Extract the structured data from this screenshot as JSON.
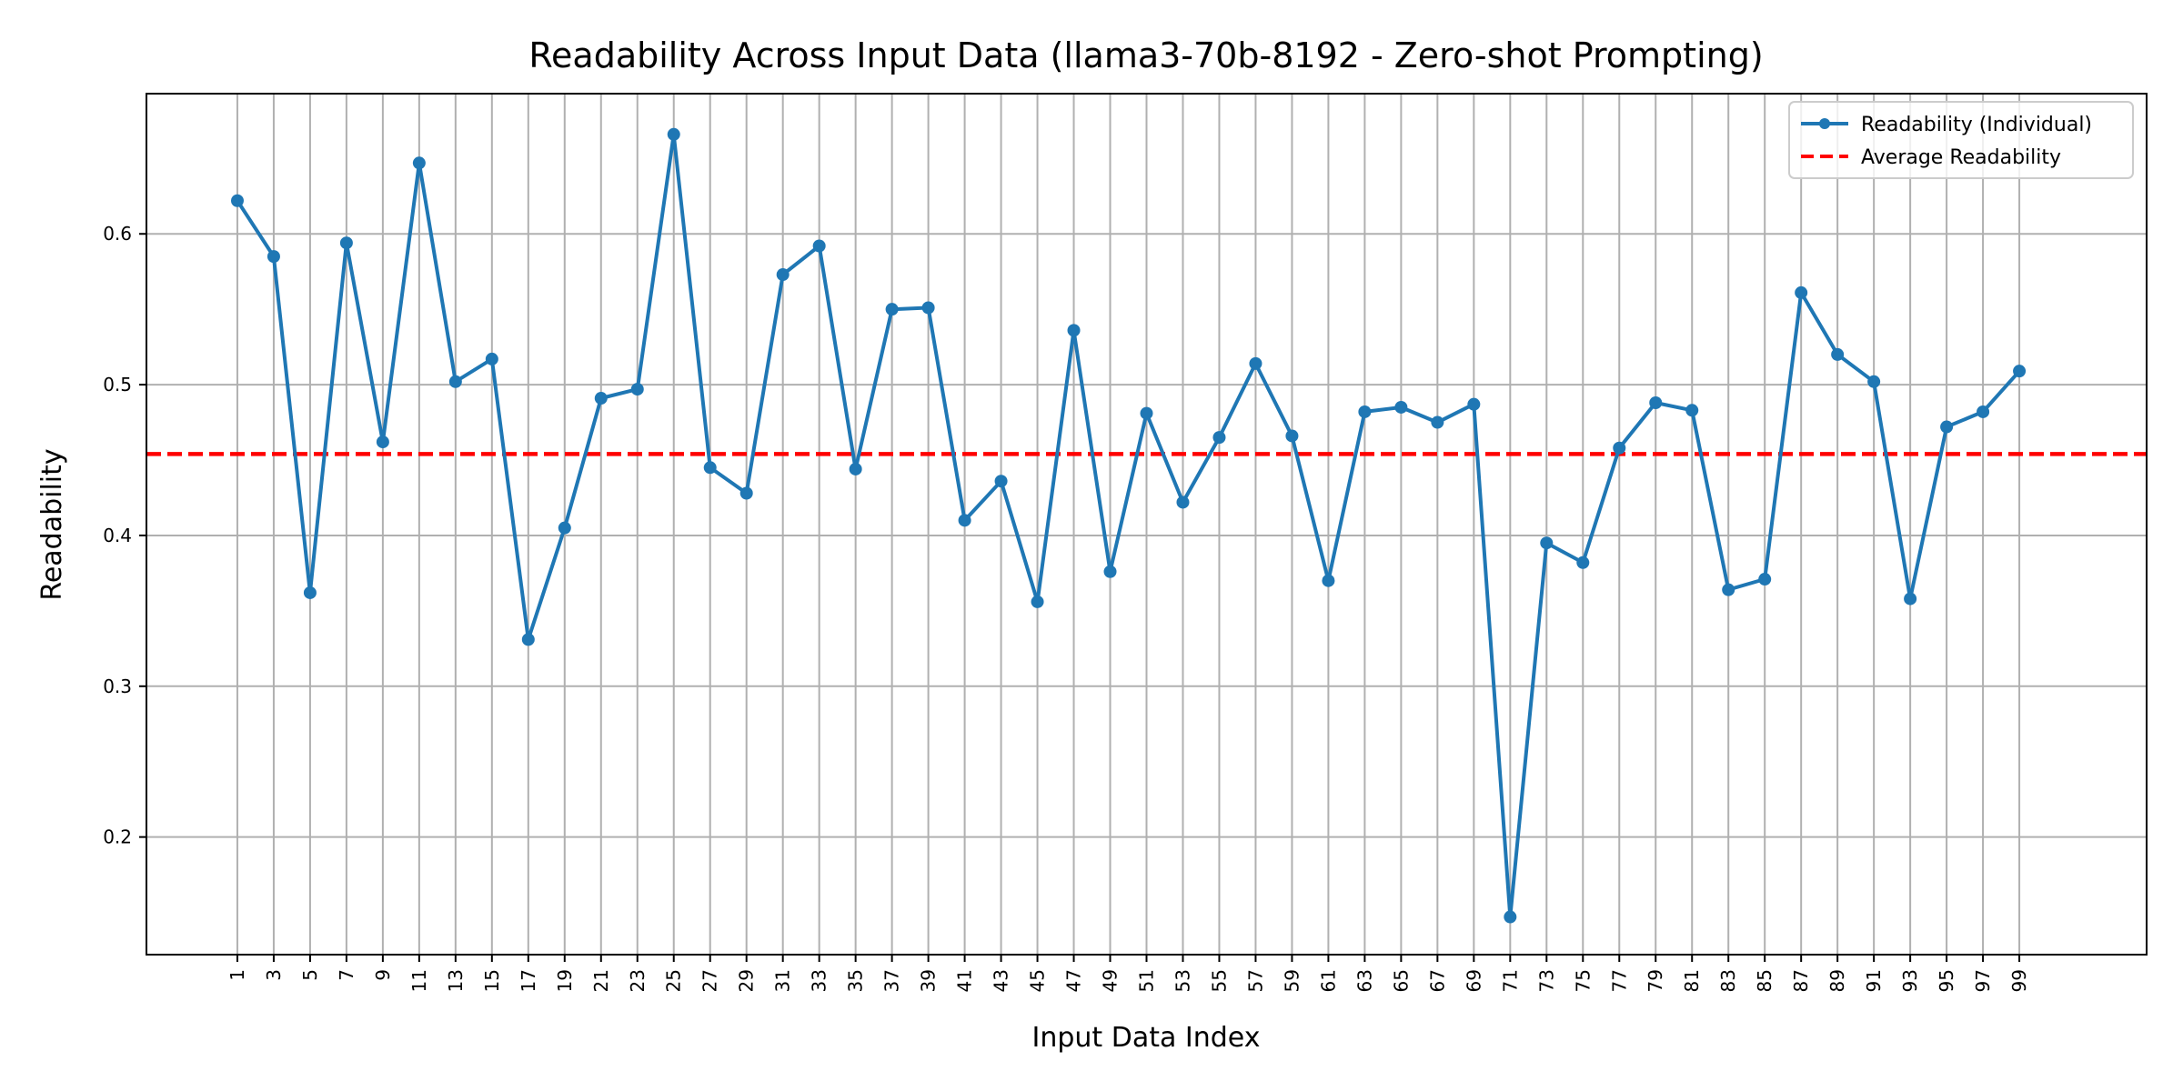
{
  "chart_data": {
    "type": "line",
    "title": "Readability Across Input Data (llama3-70b-8192 - Zero-shot Prompting)",
    "xlabel": "Input Data Index",
    "ylabel": "Readability",
    "x": [
      1,
      3,
      5,
      7,
      9,
      11,
      13,
      15,
      17,
      19,
      21,
      23,
      25,
      27,
      29,
      31,
      33,
      35,
      37,
      39,
      41,
      43,
      45,
      47,
      49,
      51,
      53,
      55,
      57,
      59,
      61,
      63,
      65,
      67,
      69,
      71,
      73,
      75,
      77,
      79,
      81,
      83,
      85,
      87,
      89,
      91,
      93,
      95,
      97,
      99
    ],
    "x_tick_labels": [
      "1",
      "3",
      "5",
      "7",
      "9",
      "11",
      "13",
      "15",
      "17",
      "19",
      "21",
      "23",
      "25",
      "27",
      "29",
      "31",
      "33",
      "35",
      "37",
      "39",
      "41",
      "43",
      "45",
      "47",
      "49",
      "51",
      "53",
      "55",
      "57",
      "59",
      "61",
      "63",
      "65",
      "67",
      "69",
      "71",
      "73",
      "75",
      "77",
      "79",
      "81",
      "83",
      "85",
      "87",
      "89",
      "91",
      "93",
      "95",
      "97",
      "99"
    ],
    "y_ticks": [
      0.2,
      0.3,
      0.4,
      0.5,
      0.6
    ],
    "y_tick_labels": [
      "0.2",
      "0.3",
      "0.4",
      "0.5",
      "0.6"
    ],
    "xlim": [
      -4,
      106
    ],
    "ylim": [
      0.122,
      0.693
    ],
    "grid": true,
    "legend_position": "top-right",
    "series": [
      {
        "name": "Readability (Individual)",
        "color": "#1f77b4",
        "style": "solid-line-with-markers",
        "values": [
          0.622,
          0.585,
          0.362,
          0.594,
          0.462,
          0.647,
          0.502,
          0.517,
          0.331,
          0.405,
          0.491,
          0.497,
          0.666,
          0.445,
          0.428,
          0.573,
          0.592,
          0.444,
          0.55,
          0.551,
          0.41,
          0.436,
          0.356,
          0.536,
          0.376,
          0.481,
          0.422,
          0.465,
          0.514,
          0.466,
          0.37,
          0.482,
          0.485,
          0.475,
          0.487,
          0.147,
          0.395,
          0.382,
          0.458,
          0.488,
          0.483,
          0.364,
          0.371,
          0.561,
          0.52,
          0.502,
          0.358,
          0.472,
          0.482,
          0.509
        ]
      },
      {
        "name": "Average Readability",
        "color": "#ff0000",
        "style": "dashed",
        "value": 0.454
      }
    ]
  }
}
